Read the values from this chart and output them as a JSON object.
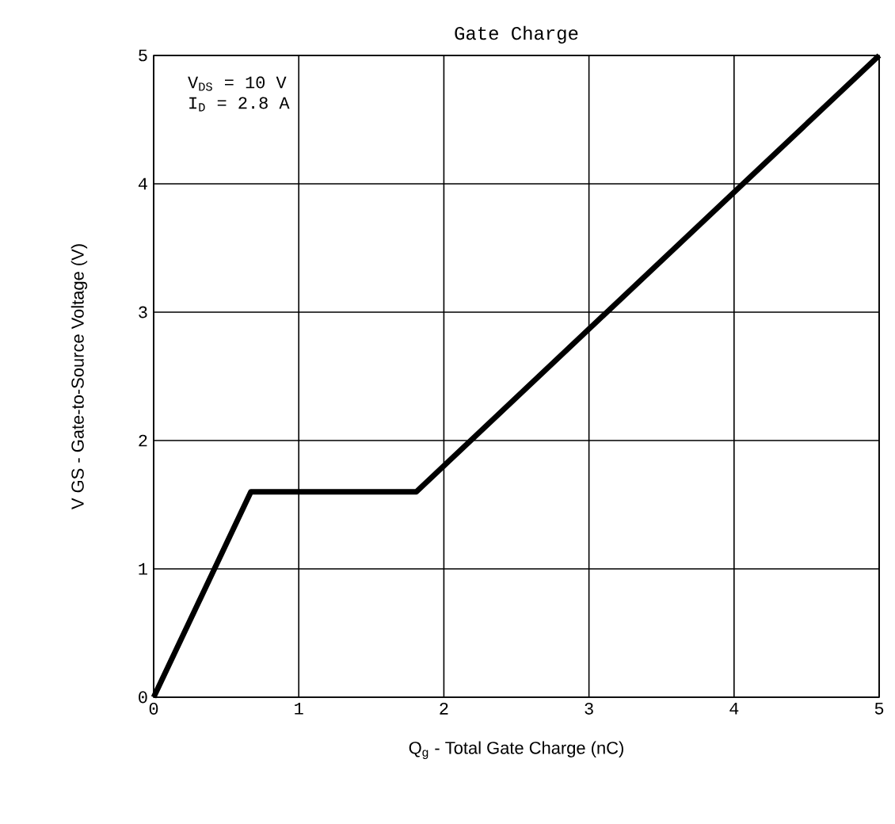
{
  "chart_data": {
    "type": "line",
    "title": "Gate Charge",
    "xlabel": "Q$_{g}$  -  Total Gate Charge (nC)",
    "ylabel": "V GS  -  Gate-to-Source Voltage (V)",
    "annotations": [
      "V$_{DS}$  = 10 V",
      "I$_{D}$ = 2.8 A"
    ],
    "x": [
      0,
      0.67,
      1.81,
      5
    ],
    "series": [
      {
        "color": "#000000",
        "values": [
          0,
          1.6,
          1.6,
          5
        ]
      }
    ],
    "xlim": [
      0,
      5
    ],
    "ylim": [
      0,
      5
    ],
    "xticks": [
      0,
      1,
      2,
      3,
      4,
      5
    ],
    "yticks": [
      0,
      1,
      2,
      3,
      4,
      5
    ],
    "grid": true,
    "line_style": "solid",
    "marker": "none"
  }
}
